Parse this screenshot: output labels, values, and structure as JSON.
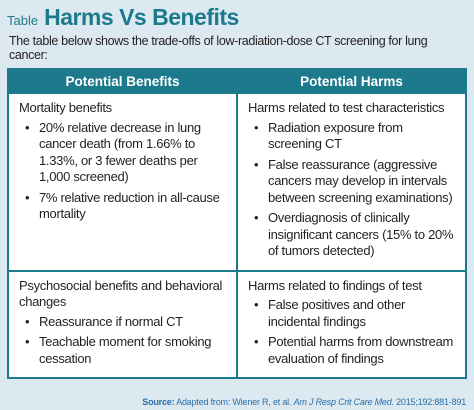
{
  "header": {
    "label": "Table",
    "title": "Harms Vs Benefits"
  },
  "intro": "The table below shows the trade-offs of low-radiation-dose CT screening for lung cancer:",
  "table": {
    "columns": [
      "Potential Benefits",
      "Potential Harms"
    ],
    "rows": [
      [
        {
          "heading": "Mortality benefits",
          "items": [
            "20% relative decrease in lung cancer death (from 1.66% to 1.33%, or 3 fewer deaths per 1,000 screened)",
            "7% relative reduction in all-cause mortality"
          ]
        },
        {
          "heading": "Harms related to test characteristics",
          "items": [
            "Radiation exposure from screening CT",
            "False reassurance (aggressive cancers may develop in intervals between screening examinations)",
            "Overdiagnosis of clinically insignificant cancers (15% to 20% of tumors detected)"
          ]
        }
      ],
      [
        {
          "heading": "Psychosocial benefits and behavioral changes",
          "items": [
            "Reassurance if normal CT",
            "Teachable moment for smoking cessation"
          ]
        },
        {
          "heading": "Harms related to findings of test",
          "items": [
            "False positives and other incidental findings",
            "Potential harms from downstream evaluation of findings"
          ]
        }
      ]
    ]
  },
  "source": {
    "prefix": "Source:",
    "text": "Adapted from: Wiener R, et al.",
    "journal": "Am J Resp Crit Care Med.",
    "citation": "2015;192:881-891"
  }
}
